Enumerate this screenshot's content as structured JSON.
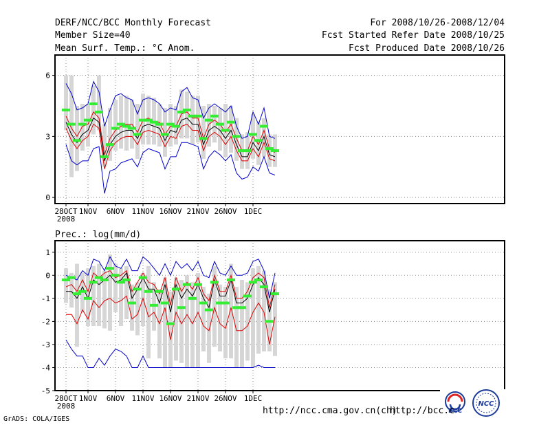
{
  "header": {
    "title": "DERF/NCC/BCC Monthly Forecast",
    "member_size": "Member Size=40",
    "variable_top": "Mean Surf. Temp.: °C Anom.",
    "period": "For 2008/10/26-2008/12/04",
    "started": "Fcst Started Refer Date 2008/10/25",
    "produced": "Fcst Produced Date 2008/10/26"
  },
  "footer": {
    "grads": "GrADS: COLA/IGES",
    "url1": "http://ncc.cma.gov.cn(ch)",
    "url2": "http://bcc.c",
    "logo_bcc": "BCC",
    "logo_ncc": "NCC"
  },
  "colors": {
    "max_min": "#0000cc",
    "spread": "#dd0000",
    "mean": "#000000",
    "ensemble_box": "#d6d6d6",
    "marker": "#33ee33",
    "grid": "#888888"
  },
  "chart_data": [
    {
      "type": "line",
      "title": "Mean Surf. Temp.: °C Anom.",
      "ylim": [
        -0.3,
        7.0
      ],
      "yticks": [
        0,
        3,
        6
      ],
      "x_labels": [
        {
          "index": 0,
          "label": "28OCT",
          "sub": "2008"
        },
        {
          "index": 4,
          "label": "1NOV"
        },
        {
          "index": 9,
          "label": "6NOV"
        },
        {
          "index": 14,
          "label": "11NOV"
        },
        {
          "index": 19,
          "label": "16NOV"
        },
        {
          "index": 24,
          "label": "21NOV"
        },
        {
          "index": 29,
          "label": "26NOV"
        },
        {
          "index": 34,
          "label": "1DEC"
        }
      ],
      "mean": [
        3.7,
        3.1,
        2.7,
        3.1,
        3.3,
        3.9,
        3.7,
        1.8,
        2.6,
        3.0,
        3.2,
        3.3,
        3.3,
        2.9,
        3.5,
        3.6,
        3.5,
        3.4,
        2.8,
        3.3,
        3.2,
        3.8,
        3.9,
        3.6,
        3.6,
        2.6,
        3.3,
        3.5,
        3.3,
        2.9,
        3.3,
        2.6,
        2.0,
        2.0,
        2.7,
        2.3,
        3.0,
        2.1,
        2.0
      ],
      "upper": [
        4.0,
        3.4,
        3.0,
        3.5,
        3.6,
        4.2,
        3.9,
        2.1,
        2.9,
        3.3,
        3.5,
        3.6,
        3.6,
        3.2,
        3.8,
        3.9,
        3.7,
        3.7,
        3.1,
        3.5,
        3.5,
        4.1,
        4.2,
        3.9,
        3.9,
        2.9,
        3.6,
        3.8,
        3.6,
        3.2,
        3.6,
        2.9,
        2.3,
        2.3,
        3.0,
        2.6,
        3.3,
        2.4,
        2.2
      ],
      "lower": [
        3.4,
        2.8,
        2.4,
        2.8,
        3.0,
        3.6,
        3.4,
        1.4,
        2.3,
        2.7,
        2.9,
        3.0,
        3.0,
        2.6,
        3.2,
        3.3,
        3.2,
        3.1,
        2.5,
        3.0,
        2.9,
        3.5,
        3.6,
        3.3,
        3.3,
        2.3,
        3.0,
        3.2,
        3.0,
        2.6,
        3.0,
        2.3,
        1.8,
        1.8,
        2.4,
        2.0,
        2.7,
        1.9,
        1.8
      ],
      "max": [
        5.6,
        5.1,
        4.3,
        4.4,
        4.6,
        5.7,
        5.2,
        3.5,
        4.3,
        5.0,
        5.1,
        4.9,
        4.8,
        4.1,
        4.8,
        4.9,
        4.8,
        4.6,
        4.2,
        4.4,
        4.3,
        5.2,
        5.4,
        4.9,
        4.8,
        3.9,
        4.4,
        4.6,
        4.4,
        4.2,
        4.5,
        3.5,
        2.9,
        3.0,
        4.2,
        3.6,
        4.4,
        3.0,
        2.9
      ],
      "min": [
        2.6,
        1.8,
        1.6,
        1.8,
        1.8,
        2.4,
        2.5,
        0.2,
        1.3,
        1.4,
        1.7,
        1.8,
        1.9,
        1.5,
        2.2,
        2.4,
        2.3,
        2.2,
        1.4,
        2.0,
        2.0,
        2.7,
        2.7,
        2.6,
        2.5,
        1.4,
        2.0,
        2.3,
        2.1,
        1.8,
        2.1,
        1.2,
        0.9,
        1.0,
        1.5,
        1.3,
        2.0,
        1.2,
        1.1
      ],
      "box_top": [
        6.0,
        6.0,
        4.5,
        4.6,
        4.6,
        5.5,
        6.0,
        3.6,
        4.4,
        4.8,
        5.0,
        5.0,
        4.8,
        4.6,
        5.1,
        5.0,
        4.9,
        4.6,
        4.4,
        4.6,
        4.5,
        5.3,
        5.2,
        5.0,
        5.0,
        4.5,
        4.6,
        4.5,
        4.4,
        4.6,
        4.5,
        3.9,
        3.1,
        3.2,
        4.1,
        3.7,
        3.9,
        3.1,
        3.1
      ],
      "box_bottom": [
        3.3,
        1.0,
        1.3,
        2.3,
        2.5,
        3.1,
        3.3,
        1.5,
        1.8,
        2.3,
        2.4,
        2.3,
        2.4,
        1.9,
        2.6,
        2.6,
        2.6,
        2.5,
        2.0,
        2.5,
        2.6,
        2.9,
        2.9,
        2.6,
        2.7,
        1.9,
        2.5,
        2.7,
        2.3,
        2.0,
        2.2,
        1.8,
        1.4,
        1.4,
        1.9,
        1.6,
        2.0,
        1.5,
        1.5
      ],
      "marker": [
        4.3,
        3.6,
        2.8,
        3.6,
        3.8,
        4.6,
        4.2,
        2.0,
        2.6,
        3.4,
        3.6,
        3.5,
        3.4,
        3.1,
        3.8,
        3.8,
        3.7,
        3.6,
        3.1,
        3.6,
        3.5,
        4.2,
        4.3,
        4.0,
        4.0,
        2.9,
        3.8,
        4.0,
        3.6,
        3.3,
        3.7,
        3.0,
        2.3,
        2.3,
        3.1,
        2.8,
        3.5,
        2.4,
        2.3
      ]
    },
    {
      "type": "line",
      "title": "Prec.: log(mm/d)",
      "ylim": [
        -5,
        1.5
      ],
      "yticks": [
        -5,
        -4,
        -3,
        -2,
        -1,
        0,
        1
      ],
      "x_labels": [
        {
          "index": 0,
          "label": "28OCT",
          "sub": "2008"
        },
        {
          "index": 4,
          "label": "1NOV"
        },
        {
          "index": 9,
          "label": "6NOV"
        },
        {
          "index": 14,
          "label": "11NOV"
        },
        {
          "index": 19,
          "label": "16NOV"
        },
        {
          "index": 24,
          "label": "21NOV"
        },
        {
          "index": 29,
          "label": "26NOV"
        },
        {
          "index": 34,
          "label": "1DEC"
        }
      ],
      "mean": [
        -0.7,
        -0.7,
        -1.0,
        -0.5,
        -1.0,
        -0.2,
        -0.4,
        -0.2,
        0.0,
        -0.3,
        -0.2,
        0.1,
        -1.0,
        -0.6,
        -0.1,
        -0.6,
        -0.6,
        -1.2,
        -0.4,
        -1.6,
        -0.4,
        -1.0,
        -0.6,
        -0.9,
        -0.4,
        -1.0,
        -1.4,
        -0.2,
        -0.9,
        -0.9,
        -0.2,
        -1.2,
        -1.2,
        -1.0,
        -0.4,
        -0.1,
        -0.4,
        -1.6,
        -0.6
      ],
      "upper": [
        -0.5,
        -0.4,
        -0.7,
        -0.2,
        -0.7,
        0.1,
        -0.1,
        0.1,
        0.2,
        -0.1,
        0.0,
        0.2,
        -0.7,
        -0.3,
        0.1,
        -0.3,
        -0.4,
        -0.8,
        -0.1,
        -1.3,
        -0.1,
        -0.7,
        -0.3,
        -0.6,
        -0.1,
        -0.8,
        -1.1,
        0.0,
        -0.7,
        -0.7,
        0.0,
        -1.0,
        -1.0,
        -0.7,
        -0.1,
        0.1,
        -0.1,
        -1.4,
        -0.4
      ],
      "lower": [
        -1.7,
        -1.7,
        -2.1,
        -1.5,
        -1.9,
        -1.1,
        -1.4,
        -1.1,
        -1.0,
        -1.2,
        -1.1,
        -0.9,
        -1.9,
        -1.7,
        -1.0,
        -1.8,
        -1.6,
        -2.1,
        -1.4,
        -2.8,
        -1.6,
        -2.1,
        -1.7,
        -2.1,
        -1.6,
        -2.2,
        -2.4,
        -1.4,
        -2.1,
        -2.3,
        -1.4,
        -2.4,
        -2.4,
        -2.2,
        -1.6,
        -1.2,
        -1.6,
        -3.0,
        -1.8
      ],
      "max": [
        0.0,
        -0.1,
        -0.2,
        0.2,
        0.0,
        0.7,
        0.6,
        0.2,
        0.8,
        0.4,
        0.3,
        0.7,
        0.2,
        0.2,
        0.8,
        0.6,
        0.3,
        0.0,
        0.5,
        0.0,
        0.6,
        0.3,
        0.5,
        0.2,
        0.6,
        0.0,
        -0.1,
        0.6,
        0.1,
        0.0,
        0.4,
        0.0,
        0.0,
        0.1,
        0.6,
        0.7,
        0.2,
        -1.0,
        0.1
      ],
      "min": [
        -2.8,
        -3.2,
        -3.5,
        -3.5,
        -4.0,
        -4.0,
        -3.6,
        -3.9,
        -3.5,
        -3.2,
        -3.3,
        -3.5,
        -4.0,
        -4.0,
        -3.5,
        -4.0,
        -4.0,
        -4.0,
        -4.0,
        -4.0,
        -4.0,
        -4.0,
        -4.0,
        -4.0,
        -4.0,
        -4.0,
        -4.0,
        -4.0,
        -4.0,
        -4.0,
        -4.0,
        -4.0,
        -4.0,
        -4.0,
        -4.0,
        -3.9,
        -4.0,
        -4.0,
        -4.0
      ],
      "box_top": [
        0.3,
        0.1,
        0.5,
        0.1,
        0.3,
        0.4,
        0.5,
        0.2,
        0.9,
        0.5,
        0.3,
        0.4,
        -0.4,
        -0.3,
        0.1,
        0.4,
        -0.3,
        -0.6,
        -0.1,
        -0.7,
        -0.1,
        -0.2,
        0.0,
        -0.3,
        0.1,
        -0.5,
        -0.8,
        0.4,
        -0.4,
        -0.5,
        0.5,
        -0.5,
        -0.2,
        -0.3,
        0.3,
        0.4,
        0.2,
        -0.6,
        -0.3
      ],
      "box_bottom": [
        -1.2,
        -1.4,
        -3.1,
        -1.6,
        -2.2,
        -2.2,
        -2.2,
        -2.3,
        -2.4,
        -1.6,
        -2.2,
        -1.9,
        -2.4,
        -2.6,
        -2.2,
        -3.6,
        -2.4,
        -3.6,
        -4.0,
        -4.0,
        -3.7,
        -3.8,
        -4.0,
        -4.0,
        -4.0,
        -3.3,
        -3.8,
        -3.1,
        -3.3,
        -3.6,
        -3.6,
        -4.0,
        -4.0,
        -3.7,
        -4.0,
        -3.4,
        -3.3,
        -3.3,
        -3.5
      ],
      "marker": [
        -0.2,
        -0.1,
        -0.8,
        -0.7,
        -1.0,
        -0.3,
        -0.1,
        -0.2,
        0.3,
        0.0,
        -0.3,
        -0.2,
        -1.2,
        -0.6,
        -0.1,
        -0.7,
        -1.3,
        -0.7,
        -1.2,
        -2.1,
        -0.6,
        -1.4,
        -0.4,
        -1.0,
        -0.4,
        -1.2,
        -1.5,
        -0.3,
        -1.2,
        -1.2,
        -0.2,
        -1.4,
        -1.4,
        -0.9,
        -0.3,
        -0.2,
        -0.5,
        -2.0,
        -0.8
      ]
    }
  ]
}
